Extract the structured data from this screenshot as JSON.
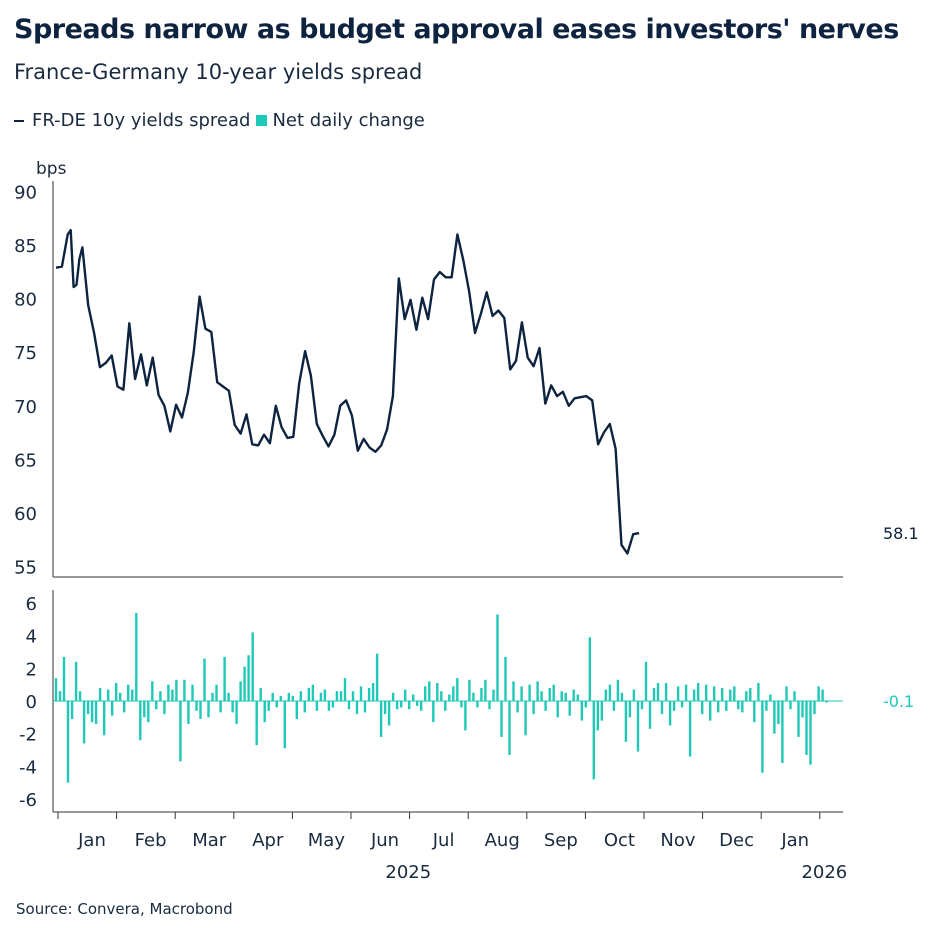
{
  "title": "Spreads narrow as budget approval eases investors' nerves",
  "subtitle": "France-Germany 10-year yields spread",
  "source": "Source: Convera, Macrobond",
  "colors": {
    "line": "#0d2340",
    "bars": "#1ec9b8",
    "axis": "#333333"
  },
  "chart_data": [
    {
      "type": "line",
      "series": [
        {
          "name": "FR-DE 10y yields spread",
          "x_month_index": [
            0.0,
            0.1,
            0.2,
            0.25,
            0.3,
            0.35,
            0.4,
            0.45,
            0.55,
            0.65,
            0.75,
            0.85,
            0.95,
            1.05,
            1.15,
            1.25,
            1.35,
            1.45,
            1.55,
            1.65,
            1.75,
            1.85,
            1.95,
            2.05,
            2.15,
            2.25,
            2.35,
            2.45,
            2.55,
            2.65,
            2.75,
            2.85,
            2.95,
            3.05,
            3.15,
            3.25,
            3.35,
            3.45,
            3.55,
            3.65,
            3.75,
            3.85,
            3.95,
            4.05,
            4.15,
            4.25,
            4.35,
            4.45,
            4.55,
            4.65,
            4.75,
            4.85,
            4.95,
            5.05,
            5.15,
            5.25,
            5.35,
            5.45,
            5.55,
            5.65,
            5.75,
            5.85,
            5.95,
            6.05,
            6.15,
            6.25,
            6.35,
            6.45,
            6.55,
            6.65,
            6.75,
            6.85,
            6.95,
            7.05,
            7.15,
            7.25,
            7.35,
            7.45,
            7.55,
            7.65,
            7.75,
            7.85,
            7.95,
            8.05,
            8.15,
            8.25,
            8.35,
            8.45,
            8.55,
            8.65,
            8.75,
            8.85,
            8.95,
            9.05,
            9.15,
            9.25,
            9.35,
            9.45,
            9.55,
            9.65,
            9.75,
            9.85,
            9.95,
            10.05,
            10.15,
            10.25,
            10.35,
            10.45,
            10.55,
            10.65,
            10.75,
            10.85,
            10.95,
            11.05,
            11.15,
            11.25,
            11.35,
            11.45,
            11.55,
            11.65,
            11.75,
            11.85,
            11.95,
            12.05,
            12.15,
            12.25,
            12.35,
            12.45,
            12.55,
            12.65,
            12.75,
            12.85,
            12.95,
            13.05,
            13.15
          ],
          "values": [
            82.9,
            83.0,
            86.0,
            86.4,
            81.1,
            81.3,
            83.7,
            84.8,
            79.4,
            76.8,
            73.6,
            74.0,
            74.7,
            71.8,
            71.5,
            77.7,
            72.5,
            74.8,
            71.9,
            74.5,
            71.0,
            70.0,
            67.6,
            70.1,
            68.9,
            71.2,
            75.0,
            80.2,
            77.2,
            76.9,
            72.2,
            71.8,
            71.4,
            68.2,
            67.4,
            69.2,
            66.4,
            66.3,
            67.3,
            66.5,
            70.0,
            68.0,
            67.0,
            67.1,
            72.1,
            75.1,
            72.8,
            68.3,
            67.2,
            66.2,
            67.3,
            70.0,
            70.5,
            69.1,
            65.8,
            66.9,
            66.1,
            65.7,
            66.3,
            67.8,
            70.9,
            81.9,
            78.1,
            79.9,
            77.1,
            80.1,
            78.1,
            81.8,
            82.5,
            82.0,
            82.0,
            86.0,
            83.6,
            80.7,
            76.8,
            78.6,
            80.6,
            78.4,
            78.9,
            78.2,
            73.4,
            74.2,
            77.8,
            74.5,
            73.7,
            75.4,
            70.2,
            71.9,
            70.9,
            71.3,
            70.0,
            70.7,
            70.8,
            70.9,
            70.5,
            66.4,
            67.5,
            68.3,
            66.0,
            57.0,
            56.2,
            58.0,
            58.1
          ]
        }
      ],
      "end_label": "58.1",
      "ylabel": "bps",
      "yticks": [
        55,
        60,
        65,
        70,
        75,
        80,
        85,
        90
      ],
      "ylim": [
        54,
        91
      ],
      "grid": false
    },
    {
      "type": "bar",
      "series": [
        {
          "name": "Net daily change",
          "values": [
            1.4,
            0.6,
            2.7,
            -5.0,
            -1.1,
            2.4,
            0.6,
            -2.6,
            -0.8,
            -1.3,
            -1.4,
            0.8,
            -2.1,
            0.7,
            -0.9,
            1.1,
            0.5,
            -0.7,
            1.0,
            0.7,
            5.4,
            -2.4,
            -1.0,
            -1.3,
            1.2,
            -0.5,
            0.6,
            -0.8,
            1.0,
            0.7,
            1.3,
            -3.7,
            1.3,
            -1.4,
            1.0,
            -0.6,
            -1.1,
            2.6,
            -1.0,
            0.5,
            1.0,
            -0.7,
            2.7,
            0.5,
            -0.7,
            -1.4,
            1.2,
            2.1,
            2.8,
            4.2,
            -2.7,
            0.8,
            -1.3,
            -0.6,
            0.5,
            -0.4,
            0.3,
            -2.9,
            0.5,
            0.3,
            -1.1,
            0.6,
            -0.7,
            0.8,
            1.0,
            -0.6,
            0.5,
            0.7,
            -0.6,
            -0.4,
            0.6,
            0.6,
            1.4,
            -0.5,
            0.6,
            -0.8,
            0.9,
            -0.7,
            0.8,
            1.1,
            2.9,
            -2.2,
            -0.8,
            -1.5,
            0.5,
            -0.5,
            -0.4,
            0.7,
            -0.5,
            0.4,
            -0.3,
            -0.6,
            0.9,
            1.2,
            -1.3,
            1.1,
            0.6,
            -0.6,
            0.4,
            0.9,
            1.4,
            -0.4,
            -1.8,
            1.3,
            0.5,
            -0.4,
            0.8,
            1.3,
            -0.5,
            0.7,
            5.3,
            -2.2,
            2.7,
            -3.3,
            1.2,
            -0.7,
            0.9,
            -2.1,
            1.0,
            -0.8,
            1.2,
            0.6,
            -0.6,
            0.8,
            1.0,
            -1.0,
            0.6,
            0.5,
            -0.9,
            0.7,
            0.4,
            -1.2,
            -0.4,
            3.9,
            -4.8,
            -1.8,
            -1.2,
            0.7,
            1.0,
            -0.6,
            1.3,
            0.5,
            -2.5,
            -1.0,
            0.7,
            -3.1,
            -0.5,
            2.4,
            -1.7,
            0.8,
            1.1,
            -0.8,
            1.1,
            -1.5,
            -0.6,
            0.9,
            -0.4,
            1.0,
            -3.4,
            0.7,
            1.1,
            -0.8,
            1.0,
            -1.2,
            0.9,
            -0.7,
            0.8,
            -0.6,
            0.7,
            0.9,
            -0.5,
            -0.7,
            0.6,
            0.8,
            -1.3,
            1.1,
            -4.4,
            -0.6,
            0.4,
            -2.0,
            -1.4,
            -3.8,
            0.9,
            -0.5,
            0.6,
            -2.2,
            -1.0,
            -3.3,
            -3.9,
            -0.8,
            0.9,
            0.7,
            -0.1
          ],
          "x_month_start": 0.0,
          "x_month_end": 13.15
        }
      ],
      "end_label": "-0.1",
      "yticks": [
        -6,
        -4,
        -2,
        0,
        2,
        4,
        6
      ],
      "ylim": [
        -6.8,
        6.8
      ],
      "grid": false
    }
  ],
  "x_axis": {
    "month_labels": [
      "Jan",
      "Feb",
      "Mar",
      "Apr",
      "May",
      "Jun",
      "Jul",
      "Aug",
      "Sep",
      "Oct",
      "Nov",
      "Dec",
      "Jan"
    ],
    "year_labels": [
      {
        "label": "2025",
        "month_index": 5.5
      },
      {
        "label": "2026",
        "month_index": 12.6
      }
    ]
  },
  "legend": {
    "line_label": "FR-DE 10y yields spread",
    "bar_label": "Net daily change",
    "placement": "top-left"
  }
}
